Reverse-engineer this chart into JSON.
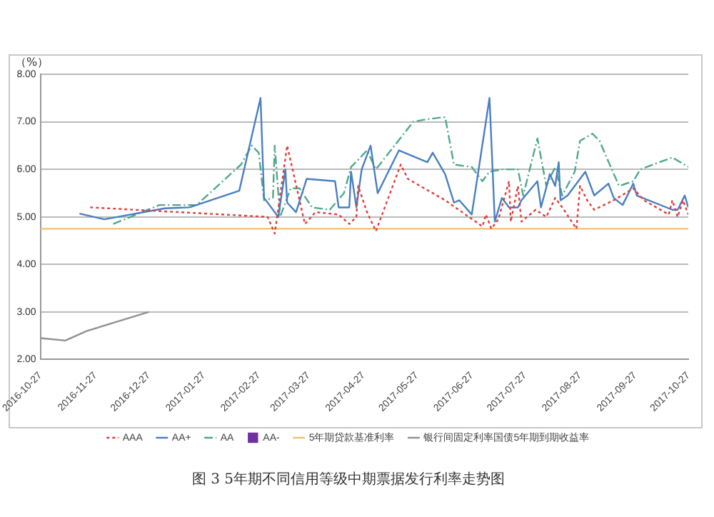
{
  "chart_data": {
    "type": "line",
    "title": "图 3 5年期不同信用等级中期票据发行利率走势图",
    "ylabel": "（%）",
    "xlim": [
      "2016-10-27",
      "2017-10-27"
    ],
    "xticks": [
      "2016-10-27",
      "2016-11-27",
      "2016-12-27",
      "2017-01-27",
      "2017-02-27",
      "2017-03-27",
      "2017-04-27",
      "2017-05-27",
      "2017-06-27",
      "2017-07-27",
      "2017-08-27",
      "2017-09-27",
      "2017-10-27"
    ],
    "ylim": [
      2,
      8
    ],
    "yticks": [
      {
        "value": 2,
        "label": "2.00"
      },
      {
        "value": 3,
        "label": "3.00"
      },
      {
        "value": 4,
        "label": "4.00"
      },
      {
        "value": 5,
        "label": "5.00"
      },
      {
        "value": 6,
        "label": "6.00"
      },
      {
        "value": 7,
        "label": "7.00"
      },
      {
        "value": 8,
        "label": "8.00"
      }
    ],
    "grid": "y",
    "legend": "bottom",
    "marker": "none",
    "series": [
      {
        "name": "AAA",
        "color": "#e0403a",
        "line_style": "dotted",
        "x": [
          "2016-11-24",
          "2017-03-04",
          "2017-03-08",
          "2017-03-15",
          "2017-03-25",
          "2017-03-31",
          "2017-04-13",
          "2017-04-19",
          "2017-04-23",
          "2017-04-24",
          "2017-04-29",
          "2017-05-04",
          "2017-05-18",
          "2017-05-22",
          "2017-06-12",
          "2017-07-03",
          "2017-07-05",
          "2017-07-08",
          "2017-07-12",
          "2017-07-18",
          "2017-07-19",
          "2017-07-23",
          "2017-07-25",
          "2017-08-02",
          "2017-08-08",
          "2017-08-13",
          "2017-08-17",
          "2017-08-25",
          "2017-08-27",
          "2017-08-31",
          "2017-09-04",
          "2017-09-15",
          "2017-09-26",
          "2017-10-02",
          "2017-10-16",
          "2017-10-18",
          "2017-10-21",
          "2017-10-24",
          "2017-10-27"
        ],
        "values": [
          5.2,
          5.0,
          4.65,
          6.5,
          4.85,
          5.1,
          5.05,
          4.85,
          5.0,
          5.65,
          5.1,
          4.7,
          6.1,
          5.8,
          5.35,
          4.8,
          5.05,
          4.75,
          4.95,
          5.75,
          4.9,
          5.65,
          4.9,
          5.15,
          5.0,
          5.4,
          5.2,
          4.75,
          5.65,
          5.35,
          5.15,
          5.35,
          5.6,
          5.35,
          5.05,
          5.35,
          5.0,
          5.35,
          5.05
        ]
      },
      {
        "name": "AA+",
        "color": "#4a7fc1",
        "line_style": "solid",
        "x": [
          "2016-11-18",
          "2016-12-02",
          "2017-01-05",
          "2017-01-19",
          "2017-02-16",
          "2017-02-28",
          "2017-03-02",
          "2017-03-10",
          "2017-03-14",
          "2017-03-15",
          "2017-03-20",
          "2017-03-26",
          "2017-04-11",
          "2017-04-13",
          "2017-04-19",
          "2017-04-20",
          "2017-04-23",
          "2017-04-26",
          "2017-05-01",
          "2017-05-05",
          "2017-05-17",
          "2017-06-02",
          "2017-06-05",
          "2017-06-12",
          "2017-06-17",
          "2017-06-20",
          "2017-06-27",
          "2017-07-07",
          "2017-07-10",
          "2017-07-14",
          "2017-07-18",
          "2017-07-23",
          "2017-07-25",
          "2017-08-03",
          "2017-08-05",
          "2017-08-10",
          "2017-08-13",
          "2017-08-15",
          "2017-08-16",
          "2017-08-20",
          "2017-08-30",
          "2017-09-04",
          "2017-09-12",
          "2017-09-15",
          "2017-09-20",
          "2017-09-26",
          "2017-09-28",
          "2017-10-18",
          "2017-10-21",
          "2017-10-25",
          "2017-10-27"
        ],
        "values": [
          5.07,
          4.95,
          5.18,
          5.2,
          5.55,
          7.5,
          5.4,
          5.0,
          6.0,
          5.3,
          5.1,
          5.8,
          5.75,
          5.2,
          5.2,
          5.95,
          5.2,
          6.0,
          6.5,
          5.5,
          6.4,
          6.15,
          6.35,
          5.9,
          5.3,
          5.35,
          5.05,
          7.5,
          4.9,
          5.4,
          5.2,
          5.2,
          5.35,
          5.75,
          5.2,
          5.9,
          5.65,
          6.15,
          5.35,
          5.45,
          5.95,
          5.45,
          5.7,
          5.4,
          5.25,
          5.7,
          5.45,
          5.15,
          5.15,
          5.45,
          5.2
        ]
      },
      {
        "name": "AA",
        "color": "#4fa88c",
        "line_style": "dashed",
        "x": [
          "2016-12-07",
          "2017-01-02",
          "2017-01-23",
          "2017-02-17",
          "2017-02-23",
          "2017-02-27",
          "2017-03-02",
          "2017-03-07",
          "2017-03-08",
          "2017-03-11",
          "2017-03-17",
          "2017-03-22",
          "2017-03-29",
          "2017-04-08",
          "2017-04-16",
          "2017-04-20",
          "2017-04-24",
          "2017-04-29",
          "2017-05-04",
          "2017-05-25",
          "2017-06-01",
          "2017-06-12",
          "2017-06-17",
          "2017-06-27",
          "2017-07-03",
          "2017-07-07",
          "2017-07-14",
          "2017-07-23",
          "2017-07-26",
          "2017-08-03",
          "2017-08-08",
          "2017-08-13",
          "2017-08-17",
          "2017-08-24",
          "2017-08-27",
          "2017-09-03",
          "2017-09-07",
          "2017-09-11",
          "2017-09-18",
          "2017-09-26",
          "2017-09-30",
          "2017-10-18",
          "2017-10-27"
        ],
        "values": [
          4.85,
          5.25,
          5.25,
          6.1,
          6.5,
          6.35,
          5.35,
          5.4,
          6.5,
          5.0,
          5.6,
          5.6,
          5.2,
          5.15,
          5.5,
          6.05,
          6.2,
          6.4,
          6.0,
          7.0,
          7.05,
          7.1,
          6.1,
          6.05,
          5.75,
          5.95,
          6.0,
          6.0,
          5.45,
          6.65,
          5.65,
          6.05,
          5.45,
          5.95,
          6.6,
          6.75,
          6.6,
          6.25,
          5.65,
          5.75,
          6.0,
          6.25,
          6.05
        ]
      },
      {
        "name": "AA-",
        "color": "#7030a0",
        "type": "scatter",
        "marker": "square"
      },
      {
        "name": "5年期贷款基准利率",
        "color": "#f5c06a",
        "line_style": "solid",
        "x": [
          "2016-10-27",
          "2017-10-27"
        ],
        "values": [
          4.75,
          4.75
        ]
      },
      {
        "name": "银行间固定利率国债5年期到期收益率",
        "color": "#909090",
        "line_style": "solid",
        "x": [
          "2016-10-27",
          "2016-11-10",
          "2016-11-22",
          "2016-12-05",
          "2016-12-27"
        ],
        "values": [
          2.45,
          2.4,
          2.6,
          2.75,
          3.0
        ]
      }
    ]
  }
}
